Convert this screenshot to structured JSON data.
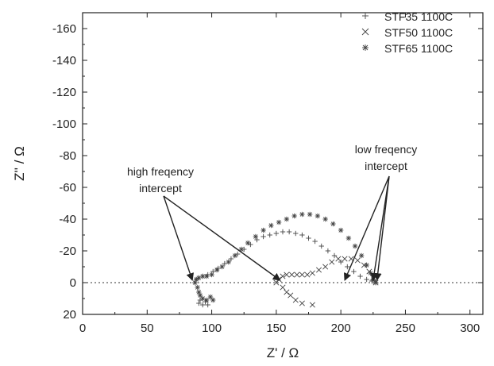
{
  "chart_data": {
    "type": "scatter",
    "xlabel": "Z' / Ω",
    "ylabel": "Z'' / Ω",
    "xlim": [
      0,
      310
    ],
    "ylim": [
      20,
      -170
    ],
    "y_axis_inverted": true,
    "xticks": [
      0,
      50,
      100,
      150,
      200,
      250,
      300
    ],
    "yticks": [
      20,
      0,
      -20,
      -40,
      -60,
      -80,
      -100,
      -120,
      -140,
      -160
    ],
    "grid": false,
    "zero_line": {
      "y": 0,
      "style": "dotted"
    },
    "legend_position": "top-right",
    "series": [
      {
        "name": "STF35 1100C",
        "marker": "+",
        "points": [
          [
            90,
            13
          ],
          [
            91,
            11
          ],
          [
            93,
            14
          ],
          [
            95,
            12
          ],
          [
            97,
            14
          ],
          [
            87,
            0
          ],
          [
            88,
            -2
          ],
          [
            90,
            -3
          ],
          [
            93,
            -4
          ],
          [
            97,
            -5
          ],
          [
            101,
            -7
          ],
          [
            105,
            -9
          ],
          [
            110,
            -12
          ],
          [
            115,
            -15
          ],
          [
            120,
            -18
          ],
          [
            125,
            -21
          ],
          [
            130,
            -24
          ],
          [
            135,
            -27
          ],
          [
            140,
            -29
          ],
          [
            145,
            -30
          ],
          [
            150,
            -31
          ],
          [
            155,
            -32
          ],
          [
            160,
            -32
          ],
          [
            165,
            -31
          ],
          [
            170,
            -30
          ],
          [
            175,
            -28
          ],
          [
            180,
            -26
          ],
          [
            185,
            -23
          ],
          [
            190,
            -20
          ],
          [
            195,
            -17
          ],
          [
            200,
            -13
          ],
          [
            205,
            -10
          ],
          [
            210,
            -7
          ],
          [
            215,
            -4
          ],
          [
            220,
            -2
          ],
          [
            224,
            -1
          ],
          [
            227,
            0
          ]
        ]
      },
      {
        "name": "STF50 1100C",
        "marker": "×",
        "points": [
          [
            150,
            0
          ],
          [
            152,
            -2
          ],
          [
            155,
            -4
          ],
          [
            158,
            -5
          ],
          [
            162,
            -5
          ],
          [
            166,
            -5
          ],
          [
            170,
            -5
          ],
          [
            174,
            -5
          ],
          [
            178,
            -6
          ],
          [
            183,
            -8
          ],
          [
            188,
            -10
          ],
          [
            193,
            -13
          ],
          [
            198,
            -15
          ],
          [
            203,
            -15
          ],
          [
            208,
            -15
          ],
          [
            213,
            -14
          ],
          [
            218,
            -11
          ],
          [
            222,
            -7
          ],
          [
            225,
            -3
          ],
          [
            227,
            -1
          ],
          [
            227,
            0
          ],
          [
            155,
            3
          ],
          [
            158,
            6
          ],
          [
            161,
            8
          ],
          [
            165,
            11
          ],
          [
            170,
            13
          ],
          [
            178,
            14
          ]
        ]
      },
      {
        "name": "STF65 1100C",
        "marker": "*",
        "points": [
          [
            87,
            0
          ],
          [
            88,
            -2
          ],
          [
            90,
            -3
          ],
          [
            93,
            -4
          ],
          [
            96,
            -4
          ],
          [
            100,
            -5
          ],
          [
            104,
            -8
          ],
          [
            108,
            -10
          ],
          [
            113,
            -13
          ],
          [
            118,
            -17
          ],
          [
            123,
            -21
          ],
          [
            128,
            -25
          ],
          [
            134,
            -29
          ],
          [
            140,
            -33
          ],
          [
            146,
            -36
          ],
          [
            152,
            -38
          ],
          [
            158,
            -40
          ],
          [
            164,
            -42
          ],
          [
            170,
            -43
          ],
          [
            176,
            -43
          ],
          [
            182,
            -42
          ],
          [
            188,
            -40
          ],
          [
            194,
            -37
          ],
          [
            200,
            -33
          ],
          [
            206,
            -28
          ],
          [
            211,
            -23
          ],
          [
            216,
            -17
          ],
          [
            220,
            -11
          ],
          [
            223,
            -6
          ],
          [
            225,
            -2
          ],
          [
            227,
            0
          ],
          [
            89,
            3
          ],
          [
            90,
            6
          ],
          [
            91,
            8
          ],
          [
            93,
            10
          ],
          [
            96,
            11
          ],
          [
            99,
            9
          ],
          [
            101,
            11
          ]
        ]
      }
    ],
    "annotations": [
      {
        "text_lines": [
          "high freqency",
          "intercept"
        ],
        "arrow_targets": [
          [
            85,
            0
          ],
          [
            153,
            0
          ]
        ]
      },
      {
        "text_lines": [
          "low freqency",
          "intercept"
        ],
        "arrow_targets": [
          [
            203,
            0
          ],
          [
            225,
            0
          ],
          [
            228,
            0
          ]
        ]
      }
    ]
  }
}
